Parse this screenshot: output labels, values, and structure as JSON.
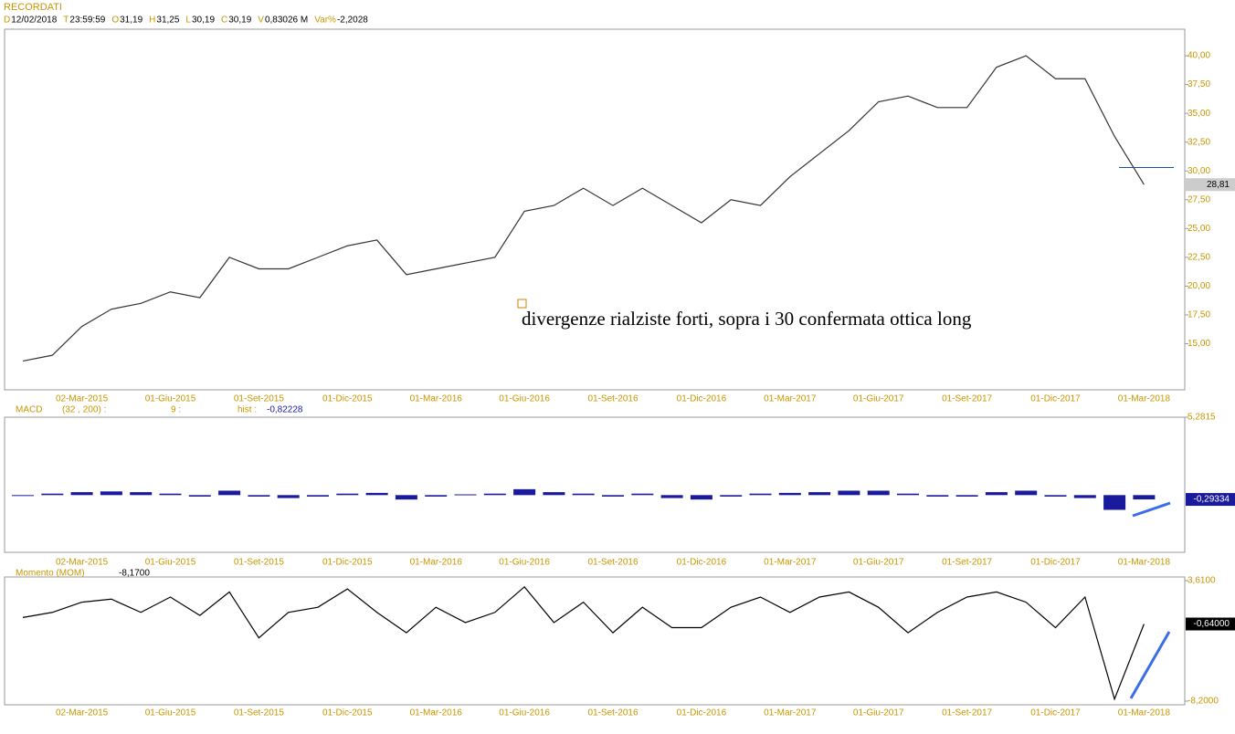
{
  "header": {
    "title": "RECORDATI",
    "fields": [
      {
        "key": "D",
        "value": "12/02/2018"
      },
      {
        "key": "T",
        "value": "23:59:59"
      },
      {
        "key": "O",
        "value": "31,19"
      },
      {
        "key": "H",
        "value": "31,25"
      },
      {
        "key": "L",
        "value": "30,19"
      },
      {
        "key": "C",
        "value": "30,19"
      },
      {
        "key": "V",
        "value": "0,83026 M"
      },
      {
        "key": "Var%",
        "value": "-2,2028"
      }
    ]
  },
  "chart_data": [
    {
      "type": "line",
      "color": "#333333",
      "categories": [
        null,
        null,
        "02-Mar-2015",
        null,
        null,
        "01-Giu-2015",
        null,
        null,
        "01-Set-2015",
        null,
        null,
        "01-Dic-2015",
        null,
        null,
        "01-Mar-2016",
        null,
        null,
        "01-Giu-2016",
        null,
        null,
        "01-Set-2016",
        null,
        null,
        "01-Dic-2016",
        null,
        null,
        "01-Mar-2017",
        null,
        null,
        "01-Giu-2017",
        null,
        null,
        "01-Set-2017",
        null,
        null,
        "01-Dic-2017",
        null,
        null,
        "01-Mar-2018"
      ],
      "values": [
        13.5,
        14,
        16.5,
        18,
        18.5,
        19.5,
        19,
        22.5,
        21.5,
        21.5,
        22.5,
        23.5,
        24,
        21,
        21.5,
        22,
        22.5,
        26.5,
        27,
        28.5,
        27,
        28.5,
        27,
        25.5,
        27.5,
        27,
        29.5,
        31.5,
        33.5,
        36,
        36.5,
        35.5,
        35.5,
        39,
        40,
        38,
        38,
        33,
        28.81
      ],
      "ylim": [
        11,
        42.3
      ],
      "yticks": [
        {
          "value": 15,
          "label": "15,00"
        },
        {
          "value": 17.5,
          "label": "17,50"
        },
        {
          "value": 20,
          "label": "20,00"
        },
        {
          "value": 22.5,
          "label": "22,50"
        },
        {
          "value": 25,
          "label": "25,00"
        },
        {
          "value": 27.5,
          "label": "27,50"
        },
        {
          "value": 30,
          "label": "30,00"
        },
        {
          "value": 32.5,
          "label": "32,50"
        },
        {
          "value": 35,
          "label": "35,00"
        },
        {
          "value": 37.5,
          "label": "37,50"
        },
        {
          "value": 40,
          "label": "40,00"
        }
      ],
      "level": 30.3,
      "level_color": "#1f4e9c",
      "last_label": {
        "value": 28.81,
        "label": "28,81"
      },
      "annotation": "divergenze rialziste forti, sopra i 30 confermata ottica long"
    },
    {
      "type": "bar",
      "title": "MACD",
      "params": [
        "(32 , 200) :",
        "9 :",
        "hist :"
      ],
      "hist": "-0,82228",
      "color": "#1a1a9c",
      "values": [
        0,
        0.1,
        0.2,
        0.25,
        0.2,
        0.1,
        -0.1,
        0.3,
        -0.1,
        -0.2,
        -0.1,
        0.1,
        0.15,
        -0.3,
        -0.1,
        0.05,
        0.1,
        0.4,
        0.2,
        0.1,
        -0.1,
        0.1,
        -0.2,
        -0.3,
        -0.1,
        0.1,
        0.15,
        0.2,
        0.3,
        0.3,
        0.1,
        -0.1,
        -0.1,
        0.2,
        0.3,
        -0.1,
        -0.2,
        -1.0,
        -0.29334
      ],
      "ylim": [
        -3.88,
        5.2815
      ],
      "yticks": [
        {
          "value": 5.2815,
          "label": "5,2815"
        }
      ],
      "last_label": {
        "value": -0.29334,
        "label": "-0,29334"
      }
    },
    {
      "type": "line",
      "title": "Momento (MOM)",
      "hist": "-8,1700",
      "color": "#000000",
      "values": [
        0,
        0.5,
        1.5,
        1.8,
        0.5,
        2.0,
        0.2,
        2.5,
        -2.0,
        0.5,
        1.0,
        2.8,
        0.5,
        -1.5,
        1.0,
        -0.5,
        0.5,
        3.0,
        -0.5,
        1.5,
        -1.5,
        1.0,
        -1.0,
        -1.0,
        1.0,
        2.0,
        0.5,
        2.0,
        2.5,
        1.0,
        -1.5,
        0.5,
        2.0,
        2.5,
        1.5,
        -1.0,
        2.0,
        -8.0,
        -0.64
      ],
      "ylim": [
        -8.56,
        3.97
      ],
      "yticks": [
        {
          "value": 3.61,
          "label": "3,6100"
        },
        {
          "value": -8.2,
          "label": "-8,2000"
        }
      ],
      "last_label": {
        "value": -0.64,
        "label": "-0,64000"
      }
    }
  ]
}
